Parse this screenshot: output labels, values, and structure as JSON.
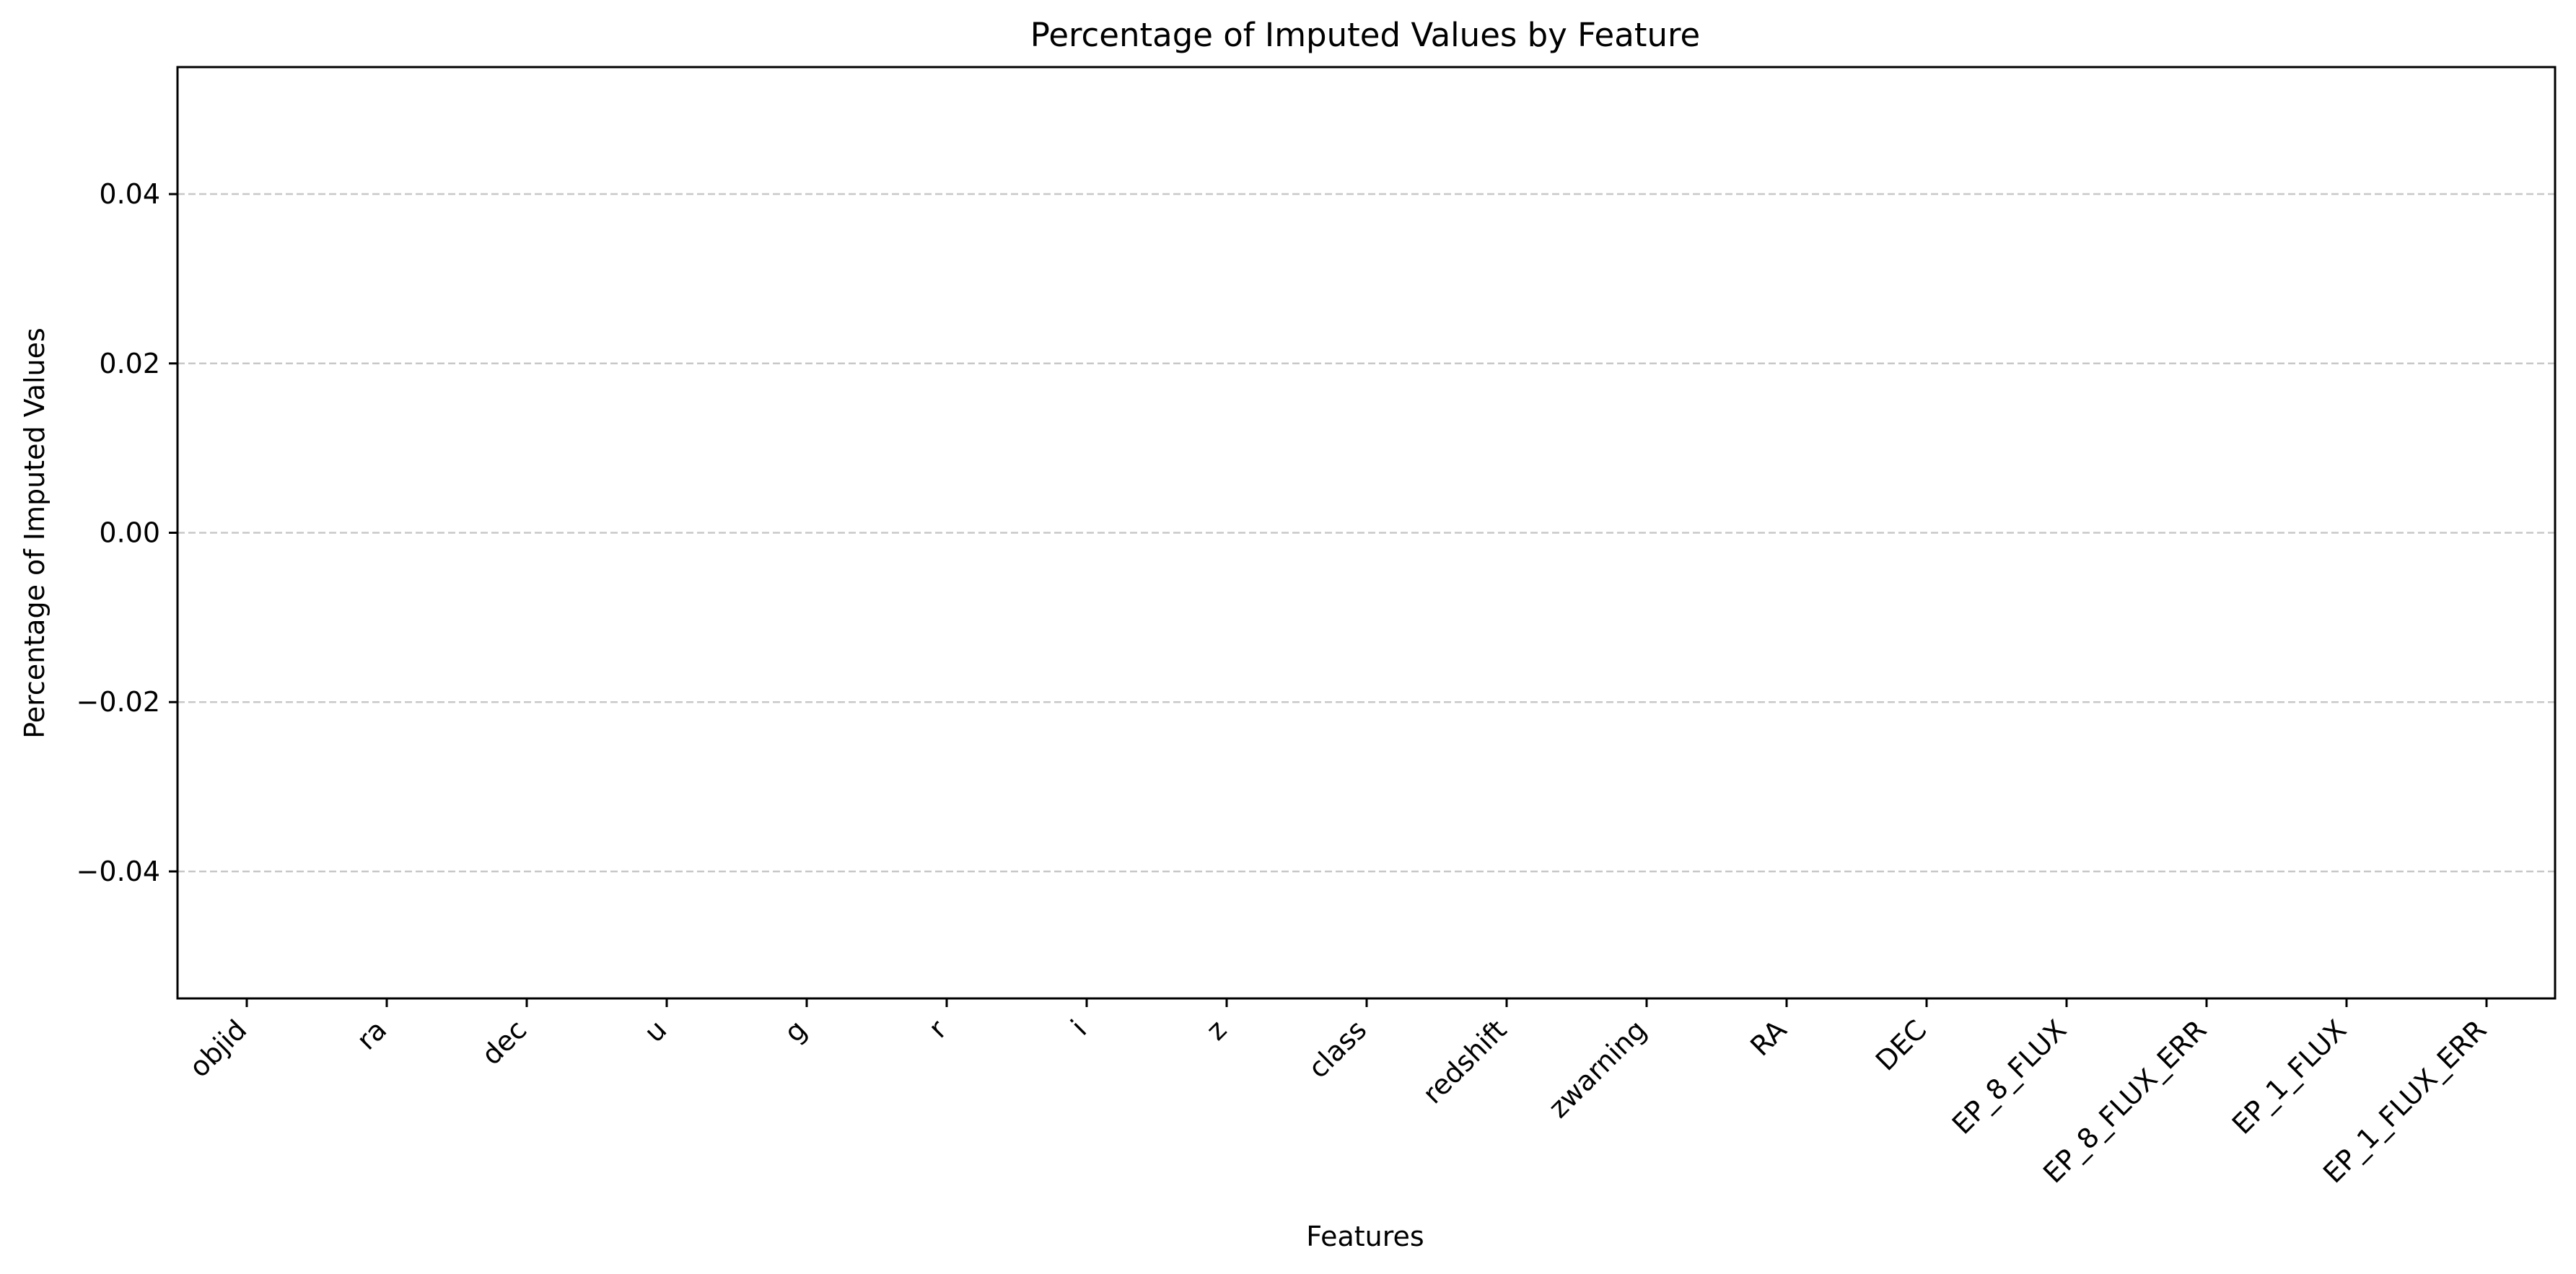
{
  "chart_data": {
    "type": "bar",
    "title": "Percentage of Imputed Values by Feature",
    "xlabel": "Features",
    "ylabel": "Percentage of Imputed Values",
    "categories": [
      "objid",
      "ra",
      "dec",
      "u",
      "g",
      "r",
      "i",
      "z",
      "class",
      "redshift",
      "zwarning",
      "RA",
      "DEC",
      "EP_8_FLUX",
      "EP_8_FLUX_ERR",
      "EP_1_FLUX",
      "EP_1_FLUX_ERR"
    ],
    "values": [
      0,
      0,
      0,
      0,
      0,
      0,
      0,
      0,
      0,
      0,
      0,
      0,
      0,
      0,
      0,
      0,
      0
    ],
    "ylim": [
      -0.055,
      0.055
    ],
    "yticks": [
      -0.04,
      -0.02,
      0.0,
      0.02,
      0.04
    ],
    "ytick_labels": [
      "−0.04",
      "−0.02",
      "0.00",
      "0.02",
      "0.04"
    ],
    "grid": "y-dashed",
    "legend": "none",
    "colors": {
      "bar": "#1f77b4",
      "grid": "#c8c8c8",
      "axis": "#000000"
    }
  }
}
